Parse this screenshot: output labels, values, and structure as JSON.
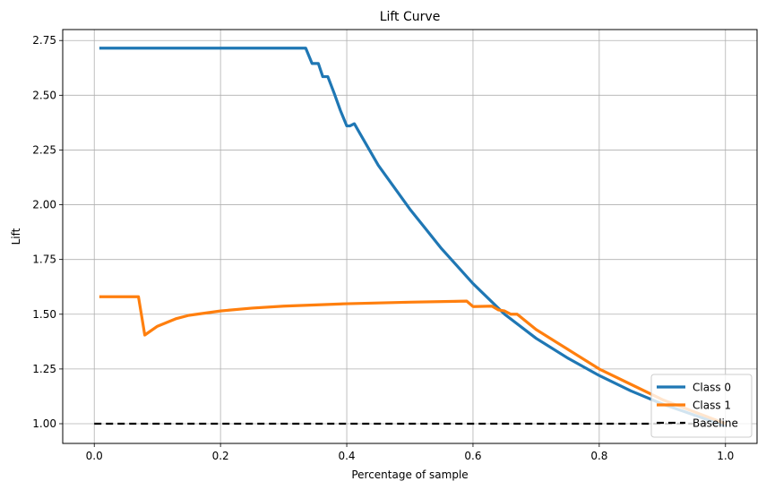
{
  "chart_data": {
    "type": "line",
    "title": "Lift Curve",
    "xlabel": "Percentage of sample",
    "ylabel": "Lift",
    "xlim": [
      -0.05,
      1.05
    ],
    "ylim": [
      0.91,
      2.8
    ],
    "xticks": [
      0.0,
      0.2,
      0.4,
      0.6,
      0.8,
      1.0
    ],
    "xtick_labels": [
      "0.0",
      "0.2",
      "0.4",
      "0.6",
      "0.8",
      "1.0"
    ],
    "yticks": [
      1.0,
      1.25,
      1.5,
      1.75,
      2.0,
      2.25,
      2.5,
      2.75
    ],
    "ytick_labels": [
      "1.00",
      "1.25",
      "1.50",
      "1.75",
      "2.00",
      "2.25",
      "2.50",
      "2.75"
    ],
    "grid": true,
    "legend_position": "lower right",
    "series": [
      {
        "name": "Class 0",
        "color": "#1f77b4",
        "line_style": "solid",
        "x": [
          0.008,
          0.05,
          0.1,
          0.15,
          0.2,
          0.25,
          0.3,
          0.335,
          0.345,
          0.355,
          0.362,
          0.37,
          0.38,
          0.39,
          0.4,
          0.405,
          0.412,
          0.42,
          0.45,
          0.5,
          0.55,
          0.6,
          0.65,
          0.7,
          0.75,
          0.8,
          0.85,
          0.9,
          0.95,
          1.0
        ],
        "y": [
          2.715,
          2.715,
          2.715,
          2.715,
          2.715,
          2.715,
          2.715,
          2.715,
          2.645,
          2.645,
          2.585,
          2.585,
          2.51,
          2.43,
          2.36,
          2.36,
          2.37,
          2.33,
          2.18,
          1.98,
          1.8,
          1.64,
          1.5,
          1.39,
          1.3,
          1.22,
          1.15,
          1.09,
          1.04,
          0.99
        ]
      },
      {
        "name": "Class 1",
        "color": "#ff7f0e",
        "line_style": "solid",
        "x": [
          0.008,
          0.03,
          0.05,
          0.07,
          0.08,
          0.1,
          0.13,
          0.15,
          0.2,
          0.25,
          0.3,
          0.4,
          0.5,
          0.59,
          0.6,
          0.63,
          0.64,
          0.65,
          0.66,
          0.67,
          0.7,
          0.75,
          0.8,
          0.85,
          0.9,
          0.95,
          1.0
        ],
        "y": [
          1.58,
          1.58,
          1.58,
          1.58,
          1.405,
          1.445,
          1.48,
          1.495,
          1.515,
          1.528,
          1.537,
          1.548,
          1.555,
          1.56,
          1.535,
          1.537,
          1.52,
          1.515,
          1.5,
          1.5,
          1.43,
          1.34,
          1.25,
          1.18,
          1.11,
          1.055,
          1.0
        ]
      },
      {
        "name": "Baseline",
        "color": "#000000",
        "line_style": "dashed",
        "x": [
          0.0,
          1.0
        ],
        "y": [
          1.0,
          1.0
        ]
      }
    ]
  }
}
